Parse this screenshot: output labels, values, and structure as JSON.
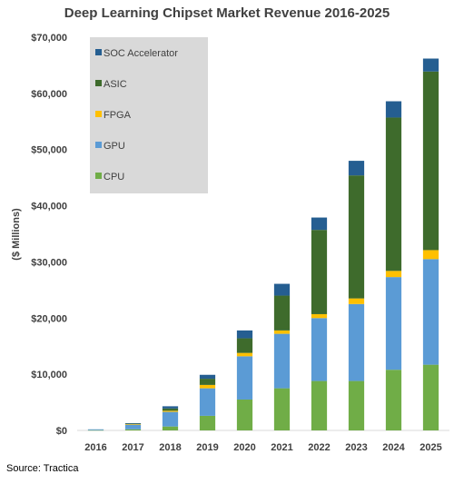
{
  "chart_data": {
    "type": "bar",
    "stacked": true,
    "title": "Deep Learning Chipset Market Revenue 2016-2025",
    "xlabel": "",
    "ylabel": "($ Millions)",
    "ylim": [
      0,
      70000
    ],
    "yticks": [
      "$0",
      "$10,000",
      "$20,000",
      "$30,000",
      "$40,000",
      "$50,000",
      "$60,000",
      "$70,000"
    ],
    "ytick_values": [
      0,
      10000,
      20000,
      30000,
      40000,
      50000,
      60000,
      70000
    ],
    "grid": false,
    "legend_placement": "top-left",
    "categories": [
      "2016",
      "2017",
      "2018",
      "2019",
      "2020",
      "2021",
      "2022",
      "2023",
      "2024",
      "2025"
    ],
    "series": [
      {
        "name": "CPU",
        "color": "#70ad47",
        "values": [
          50,
          200,
          700,
          2600,
          5500,
          7500,
          8800,
          8800,
          10800,
          11700
        ]
      },
      {
        "name": "GPU",
        "color": "#5b9bd5",
        "values": [
          150,
          800,
          2600,
          4900,
          7700,
          9700,
          11200,
          13700,
          16500,
          18800
        ]
      },
      {
        "name": "FPGA",
        "color": "#ffc000",
        "values": [
          0,
          100,
          200,
          600,
          600,
          600,
          700,
          1000,
          1100,
          1600
        ]
      },
      {
        "name": "ASIC",
        "color": "#3e6b2c",
        "values": [
          0,
          100,
          400,
          1100,
          2600,
          6200,
          15000,
          21900,
          27300,
          31800
        ]
      },
      {
        "name": "SOC Accelerator",
        "color": "#255e91",
        "values": [
          0,
          100,
          400,
          700,
          1400,
          2100,
          2200,
          2600,
          2900,
          2300
        ]
      }
    ]
  },
  "source": "Source: Tractica",
  "legend_bg": "#d9d9d9"
}
